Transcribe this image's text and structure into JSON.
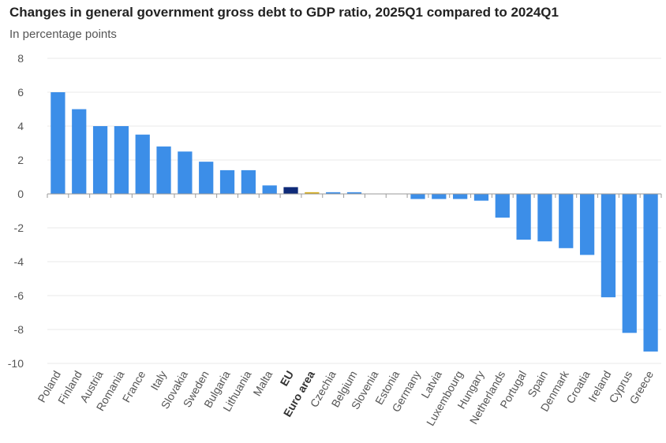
{
  "chart_data": {
    "type": "bar",
    "title": "Changes in general government gross debt to GDP ratio, 2025Q1 compared to 2024Q1",
    "subtitle": "In percentage points",
    "xlabel": "",
    "ylabel": "",
    "ylim": [
      -10,
      8
    ],
    "yticks": [
      8,
      6,
      4,
      2,
      0,
      -2,
      -4,
      -6,
      -8,
      -10
    ],
    "grid": true,
    "legend": "none",
    "categories": [
      "Poland",
      "Finland",
      "Austria",
      "Romania",
      "France",
      "Italy",
      "Slovakia",
      "Sweden",
      "Bulgaria",
      "Lithuania",
      "Malta",
      "EU",
      "Euro area",
      "Czechia",
      "Belgium",
      "Slovenia",
      "Estonia",
      "Germany",
      "Latvia",
      "Luxembourg",
      "Hungary",
      "Netherlands",
      "Portugal",
      "Spain",
      "Denmark",
      "Croatia",
      "Ireland",
      "Cyprus",
      "Greece"
    ],
    "values": [
      6.0,
      5.0,
      4.0,
      4.0,
      3.5,
      2.8,
      2.5,
      1.9,
      1.4,
      1.4,
      0.5,
      0.4,
      0.1,
      0.1,
      0.1,
      0.0,
      0.0,
      -0.3,
      -0.3,
      -0.3,
      -0.4,
      -1.4,
      -2.7,
      -2.8,
      -3.2,
      -3.6,
      -6.1,
      -8.2,
      -9.3
    ],
    "bold_categories": [
      "EU",
      "Euro area"
    ],
    "colors": {
      "default": "#3c8ee8",
      "EU": "#0e2a78",
      "Euro area": "#d6ad1c"
    }
  }
}
